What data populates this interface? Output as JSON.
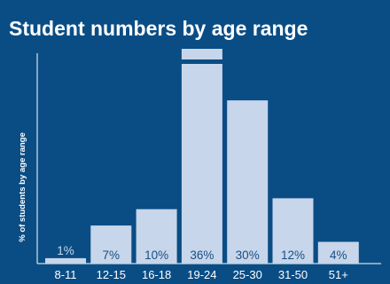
{
  "colors": {
    "background": "#0a4d85",
    "bar": "#c7d6ea",
    "axis": "#ffffff",
    "value_label": "#1a4f86"
  },
  "chart_data": {
    "type": "bar",
    "title": "Student numbers by age range",
    "xlabel": "",
    "ylabel": "% of students by age range",
    "categories": [
      "8-11",
      "12-15",
      "16-18",
      "19-24",
      "25-30",
      "31-50",
      "51+"
    ],
    "values": [
      1,
      7,
      10,
      36,
      30,
      12,
      4
    ],
    "value_labels": [
      "1%",
      "7%",
      "10%",
      "36%",
      "30%",
      "12%",
      "4%"
    ],
    "ylim": [
      0,
      36
    ],
    "grid": false,
    "legend": "none",
    "broken_bar": "19-24"
  }
}
